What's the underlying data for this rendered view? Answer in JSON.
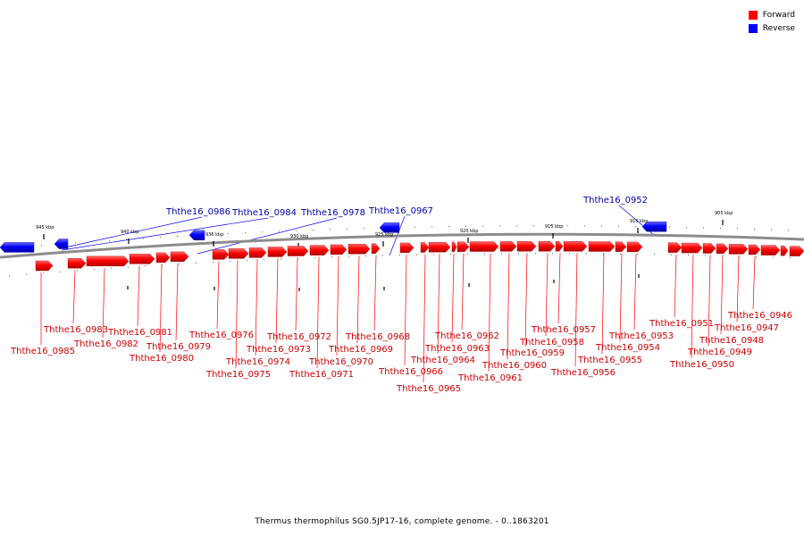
{
  "legend": {
    "forward_label": "Forward",
    "reverse_label": "Reverse",
    "forward_color": "#ff0000",
    "reverse_color": "#0000ff"
  },
  "caption": "Thermus thermophilus SG0.5JP17-16, complete genome. - 0..1863201",
  "colors": {
    "forward_gene": "#ff0000",
    "forward_label": "#cc0000",
    "reverse_gene": "#0000ff",
    "reverse_label": "#0000aa",
    "backbone": "#808080"
  },
  "ruler": [
    "945 kbp",
    "940 kbp",
    "935 kbp",
    "930 kbp",
    "925 kbp",
    "920 kbp",
    "915 kbp",
    "910 kbp",
    "905 kbp"
  ],
  "reverse_genes": [
    "Ththe16_0986",
    "Ththe16_0984",
    "Ththe16_0978",
    "Ththe16_0967",
    "Ththe16_0952"
  ],
  "forward_genes": [
    "Ththe16_0985",
    "Ththe16_0983",
    "Ththe16_0982",
    "Ththe16_0981",
    "Ththe16_0980",
    "Ththe16_0979",
    "Ththe16_0976",
    "Ththe16_0975",
    "Ththe16_0974",
    "Ththe16_0973",
    "Ththe16_0972",
    "Ththe16_0971",
    "Ththe16_0970",
    "Ththe16_0969",
    "Ththe16_0968",
    "Ththe16_0966",
    "Ththe16_0965",
    "Ththe16_0964",
    "Ththe16_0963",
    "Ththe16_0962",
    "Ththe16_0961",
    "Ththe16_0960",
    "Ththe16_0959",
    "Ththe16_0958",
    "Ththe16_0957",
    "Ththe16_0956",
    "Ththe16_0955",
    "Ththe16_0954",
    "Ththe16_0953",
    "Ththe16_0951",
    "Ththe16_0950",
    "Ththe16_0949",
    "Ththe16_0948",
    "Ththe16_0947",
    "Ththe16_0946"
  ]
}
